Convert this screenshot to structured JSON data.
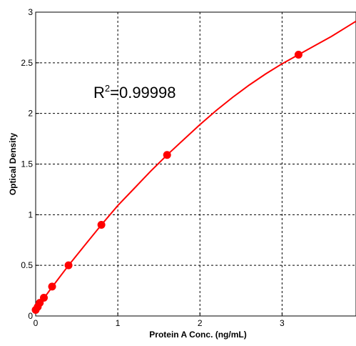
{
  "chart_data": {
    "type": "scatter",
    "xlabel": "Protein A Conc. (ng/mL)",
    "ylabel": "Optical Density",
    "xlim": [
      0,
      3.9
    ],
    "ylim": [
      0,
      3
    ],
    "x_ticks": [
      0,
      1,
      2,
      3
    ],
    "x_tick_labels": [
      "0",
      "1",
      "2",
      "3"
    ],
    "y_ticks": [
      0,
      0.5,
      1,
      1.5,
      2,
      2.5,
      3
    ],
    "y_tick_labels": [
      "0",
      "0.5",
      "1",
      "1.5",
      "2",
      "2.5",
      "3"
    ],
    "grid": true,
    "annotation": {
      "prefix": "R",
      "superscript": "2",
      "suffix": "=0.99998"
    },
    "series": [
      {
        "points": [
          {
            "x": 0,
            "y": 0.06
          },
          {
            "x": 0.025,
            "y": 0.09
          },
          {
            "x": 0.05,
            "y": 0.13
          },
          {
            "x": 0.1,
            "y": 0.18
          },
          {
            "x": 0.2,
            "y": 0.29
          },
          {
            "x": 0.4,
            "y": 0.5
          },
          {
            "x": 0.8,
            "y": 0.9
          },
          {
            "x": 1.6,
            "y": 1.59
          },
          {
            "x": 3.2,
            "y": 2.58
          }
        ],
        "fit_curve": [
          {
            "x": 0,
            "y": 0.06
          },
          {
            "x": 0.1,
            "y": 0.175
          },
          {
            "x": 0.2,
            "y": 0.285
          },
          {
            "x": 0.4,
            "y": 0.5
          },
          {
            "x": 0.6,
            "y": 0.7
          },
          {
            "x": 0.8,
            "y": 0.9
          },
          {
            "x": 1.0,
            "y": 1.09
          },
          {
            "x": 1.2,
            "y": 1.26
          },
          {
            "x": 1.4,
            "y": 1.43
          },
          {
            "x": 1.6,
            "y": 1.59
          },
          {
            "x": 1.8,
            "y": 1.74
          },
          {
            "x": 2.0,
            "y": 1.89
          },
          {
            "x": 2.2,
            "y": 2.03
          },
          {
            "x": 2.4,
            "y": 2.16
          },
          {
            "x": 2.6,
            "y": 2.28
          },
          {
            "x": 2.8,
            "y": 2.39
          },
          {
            "x": 3.0,
            "y": 2.49
          },
          {
            "x": 3.2,
            "y": 2.58
          },
          {
            "x": 3.4,
            "y": 2.67
          },
          {
            "x": 3.6,
            "y": 2.76
          },
          {
            "x": 3.8,
            "y": 2.86
          },
          {
            "x": 3.9,
            "y": 2.91
          }
        ],
        "color": "#ff0000"
      }
    ]
  }
}
